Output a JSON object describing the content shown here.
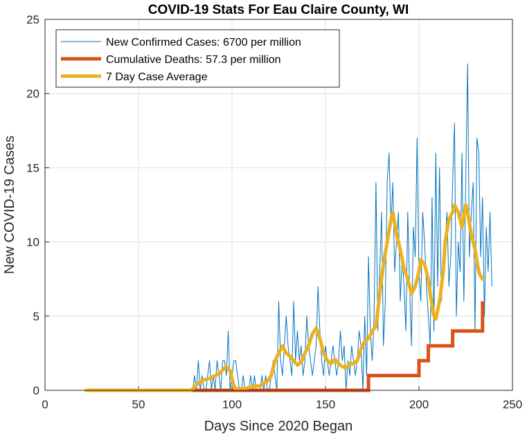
{
  "chart_data": {
    "type": "line",
    "title": "COVID-19 Stats For Eau Claire County, WI",
    "xlabel": "Days Since 2020 Began",
    "ylabel": "New COVID-19 Cases",
    "xlim": [
      0,
      250
    ],
    "ylim": [
      0,
      25
    ],
    "xticks": [
      0,
      50,
      100,
      150,
      200,
      250
    ],
    "yticks": [
      0,
      5,
      10,
      15,
      20,
      25
    ],
    "grid": true,
    "legend_position": "top-left",
    "series": [
      {
        "name": "New Confirmed Cases: 6700 per million",
        "color": "#0072BD",
        "x_start": 22,
        "values": [
          0,
          0,
          0,
          0,
          0,
          0,
          0,
          0,
          0,
          0,
          0,
          0,
          0,
          0,
          0,
          0,
          0,
          0,
          0,
          0,
          0,
          0,
          0,
          0,
          0,
          0,
          0,
          0,
          0,
          0,
          0,
          0,
          0,
          0,
          0,
          0,
          0,
          0,
          0,
          0,
          0,
          0,
          0,
          0,
          0,
          0,
          0,
          0,
          0,
          0,
          0,
          0,
          0,
          0,
          0,
          0,
          0,
          0,
          1,
          0,
          2,
          0,
          1,
          0,
          0,
          1,
          2,
          0,
          1,
          0,
          2,
          1,
          0,
          2,
          2,
          1,
          4,
          0,
          1,
          2,
          2,
          1,
          0,
          0,
          1,
          0,
          0,
          0,
          1,
          0,
          1,
          0,
          0,
          0,
          1,
          0,
          1,
          0,
          0,
          1,
          2,
          1,
          0,
          6,
          2,
          1,
          3,
          5,
          3,
          2,
          1,
          6,
          2,
          4,
          2,
          3,
          1,
          2,
          5,
          3,
          2,
          1,
          2,
          3,
          7,
          4,
          2,
          1,
          3,
          2,
          1,
          2,
          3,
          2,
          1,
          2,
          4,
          2,
          3,
          0,
          2,
          1,
          3,
          2,
          1,
          2,
          4,
          3,
          0,
          5,
          1,
          9,
          4,
          2,
          5,
          14,
          4,
          8,
          12,
          3,
          6,
          14,
          16,
          11,
          14,
          8,
          10,
          12,
          6,
          9,
          7,
          4,
          12,
          7,
          3,
          11,
          9,
          17,
          8,
          6,
          12,
          10,
          7,
          5,
          3,
          13,
          4,
          16,
          7,
          15,
          6,
          8,
          10,
          12,
          7,
          9,
          14,
          18,
          5,
          10,
          8,
          16,
          6,
          14,
          22,
          9,
          12,
          14,
          4,
          17,
          16,
          9,
          13,
          5,
          11,
          8,
          12,
          7
        ]
      },
      {
        "name": "Cumulative Deaths: 57.3 per million",
        "color": "#D95319",
        "steps": [
          [
            22,
            0
          ],
          [
            173,
            0
          ],
          [
            173,
            1
          ],
          [
            200,
            1
          ],
          [
            200,
            2
          ],
          [
            205,
            2
          ],
          [
            205,
            3
          ],
          [
            218,
            3
          ],
          [
            218,
            4
          ],
          [
            234,
            4
          ],
          [
            234,
            6
          ]
        ]
      },
      {
        "name": "7 Day Case Average",
        "color": "#EDB120",
        "points": [
          [
            22,
            0
          ],
          [
            78,
            0
          ],
          [
            80,
            0.2
          ],
          [
            82,
            0.5
          ],
          [
            85,
            0.7
          ],
          [
            88,
            0.8
          ],
          [
            91,
            1.0
          ],
          [
            93,
            1.1
          ],
          [
            96,
            1.5
          ],
          [
            97,
            1.6
          ],
          [
            99,
            1.3
          ],
          [
            100,
            0.8
          ],
          [
            101,
            0.3
          ],
          [
            102,
            0.1
          ],
          [
            104,
            0.1
          ],
          [
            106,
            0.1
          ],
          [
            110,
            0.2
          ],
          [
            112,
            0.3
          ],
          [
            115,
            0.3
          ],
          [
            117,
            0.5
          ],
          [
            119,
            0.6
          ],
          [
            121,
            1.0
          ],
          [
            123,
            2.0
          ],
          [
            125,
            2.5
          ],
          [
            127,
            3.0
          ],
          [
            129,
            2.5
          ],
          [
            131,
            2.3
          ],
          [
            133,
            2.0
          ],
          [
            135,
            1.7
          ],
          [
            137,
            1.9
          ],
          [
            139,
            2.5
          ],
          [
            141,
            3.0
          ],
          [
            143,
            3.8
          ],
          [
            145,
            4.2
          ],
          [
            147,
            3.5
          ],
          [
            149,
            2.5
          ],
          [
            151,
            2.0
          ],
          [
            153,
            1.8
          ],
          [
            155,
            2.1
          ],
          [
            157,
            1.8
          ],
          [
            159,
            1.6
          ],
          [
            161,
            1.5
          ],
          [
            163,
            1.8
          ],
          [
            165,
            1.8
          ],
          [
            167,
            2.0
          ],
          [
            169,
            2.8
          ],
          [
            171,
            3.3
          ],
          [
            173,
            3.5
          ],
          [
            175,
            4.0
          ],
          [
            177,
            4.3
          ],
          [
            179,
            6.5
          ],
          [
            181,
            8.5
          ],
          [
            183,
            10.0
          ],
          [
            185,
            11.5
          ],
          [
            186,
            12.0
          ],
          [
            188,
            10.5
          ],
          [
            190,
            9.5
          ],
          [
            192,
            8.2
          ],
          [
            194,
            7.5
          ],
          [
            196,
            6.5
          ],
          [
            198,
            7.0
          ],
          [
            200,
            8.0
          ],
          [
            201,
            8.8
          ],
          [
            203,
            8.5
          ],
          [
            205,
            7.5
          ],
          [
            206,
            6.5
          ],
          [
            208,
            5.0
          ],
          [
            209,
            4.8
          ],
          [
            211,
            6.0
          ],
          [
            213,
            8.0
          ],
          [
            214,
            10.0
          ],
          [
            216,
            11.5
          ],
          [
            218,
            12.0
          ],
          [
            219,
            12.5
          ],
          [
            221,
            12.0
          ],
          [
            223,
            11.0
          ],
          [
            225,
            12.5
          ],
          [
            226,
            12.0
          ],
          [
            228,
            10.5
          ],
          [
            229,
            10.0
          ],
          [
            230,
            9.5
          ],
          [
            232,
            8.0
          ],
          [
            233,
            7.7
          ],
          [
            234,
            7.5
          ]
        ]
      }
    ]
  }
}
